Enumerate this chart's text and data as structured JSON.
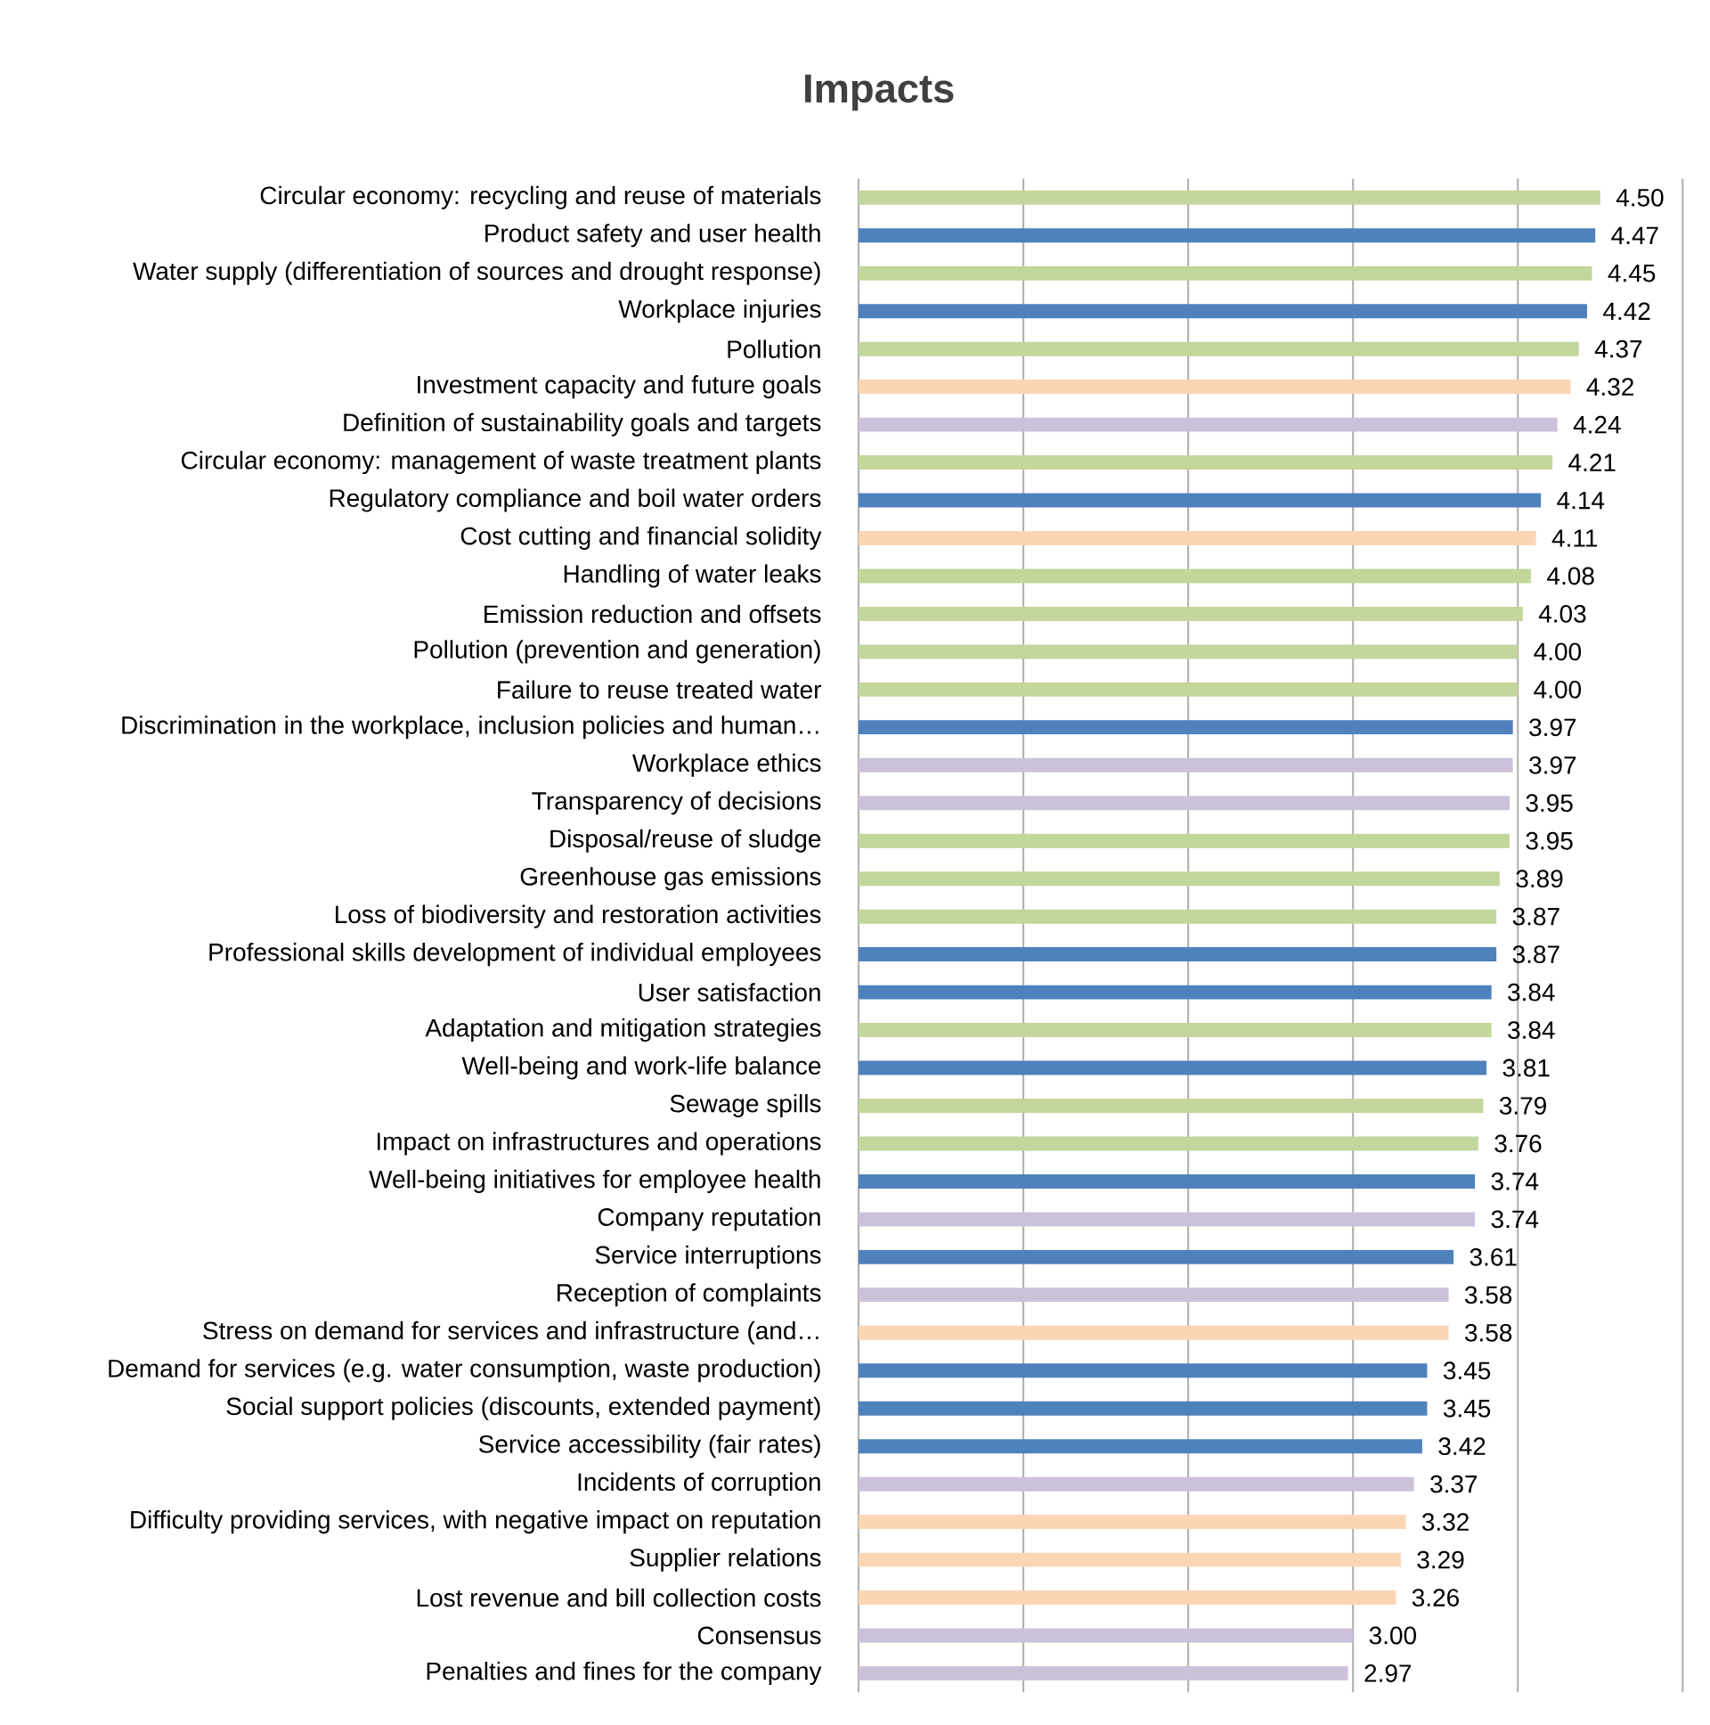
{
  "chart_data": {
    "type": "bar",
    "orientation": "horizontal",
    "title": "Impacts",
    "categories": [
      "Circular economy: recycling and reuse of materials",
      "Product safety and user health",
      "Water supply (differentiation of sources and drought response)",
      "Workplace injuries",
      "Pollution",
      "Investment capacity and future goals",
      "Definition of sustainability goals and targets",
      "Circular economy: management of waste treatment plants",
      "Regulatory compliance and boil water orders",
      "Cost cutting and financial solidity",
      "Handling of water leaks",
      "Emission reduction and offsets",
      "Pollution (prevention and generation)",
      "Failure to reuse treated water",
      "Discrimination in the workplace, inclusion policies and human…",
      "Workplace ethics",
      "Transparency of decisions",
      "Disposal/reuse of sludge",
      "Greenhouse gas emissions",
      "Loss of biodiversity and restoration activities",
      "Professional skills development of individual employees",
      "User satisfaction",
      "Adaptation and mitigation strategies",
      "Well-being and work-life balance",
      "Sewage spills",
      "Impact on infrastructures and operations",
      "Well-being initiatives for employee health",
      "Company reputation",
      "Service interruptions",
      "Reception of complaints",
      "Stress on demand for services and infrastructure (and…",
      "Demand for services (e.g. water consumption, waste production)",
      "Social support policies (discounts, extended payment)",
      "Service accessibility (fair rates)",
      "Incidents of corruption",
      "Difficulty providing services, with negative impact on reputation",
      "Supplier relations",
      "Lost revenue and bill collection costs",
      "Consensus",
      "Penalties and fines for the company"
    ],
    "values": [
      4.5,
      4.47,
      4.45,
      4.42,
      4.37,
      4.32,
      4.24,
      4.21,
      4.14,
      4.11,
      4.08,
      4.03,
      4.0,
      4.0,
      3.97,
      3.97,
      3.95,
      3.95,
      3.89,
      3.87,
      3.87,
      3.84,
      3.84,
      3.81,
      3.79,
      3.76,
      3.74,
      3.74,
      3.61,
      3.58,
      3.58,
      3.45,
      3.45,
      3.42,
      3.37,
      3.32,
      3.29,
      3.26,
      3.0,
      2.97
    ],
    "value_labels": [
      "4.50",
      "4.47",
      "4.45",
      "4.42",
      "4.37",
      "4.32",
      "4.24",
      "4.21",
      "4.14",
      "4.11",
      "4.08",
      "4.03",
      "4.00",
      "4.00",
      "3.97",
      "3.97",
      "3.95",
      "3.95",
      "3.89",
      "3.87",
      "3.87",
      "3.84",
      "3.84",
      "3.81",
      "3.79",
      "3.76",
      "3.74",
      "3.74",
      "3.61",
      "3.58",
      "3.58",
      "3.45",
      "3.45",
      "3.42",
      "3.37",
      "3.32",
      "3.29",
      "3.26",
      "3.00",
      "2.97"
    ],
    "colors": [
      "#c3d69b",
      "#4f81bd",
      "#c3d69b",
      "#4f81bd",
      "#c3d69b",
      "#fcd5b5",
      "#ccc1da",
      "#c3d69b",
      "#4f81bd",
      "#fcd5b5",
      "#c3d69b",
      "#c3d69b",
      "#c3d69b",
      "#c3d69b",
      "#4f81bd",
      "#ccc1da",
      "#ccc1da",
      "#c3d69b",
      "#c3d69b",
      "#c3d69b",
      "#4f81bd",
      "#4f81bd",
      "#c3d69b",
      "#4f81bd",
      "#c3d69b",
      "#c3d69b",
      "#4f81bd",
      "#ccc1da",
      "#4f81bd",
      "#ccc1da",
      "#fcd5b5",
      "#4f81bd",
      "#4f81bd",
      "#4f81bd",
      "#ccc1da",
      "#fcd5b5",
      "#fcd5b5",
      "#fcd5b5",
      "#ccc1da",
      "#ccc1da"
    ],
    "xlim": [
      0,
      5
    ],
    "xticks": [
      {
        "value": 0,
        "label": null
      },
      {
        "value": 1,
        "label": null
      },
      {
        "value": 2,
        "label": null
      },
      {
        "value": 3,
        "label": null
      },
      {
        "value": 4,
        "label": null
      },
      {
        "value": 5,
        "label": null
      }
    ],
    "grid": "x",
    "tick_labels": "y"
  }
}
